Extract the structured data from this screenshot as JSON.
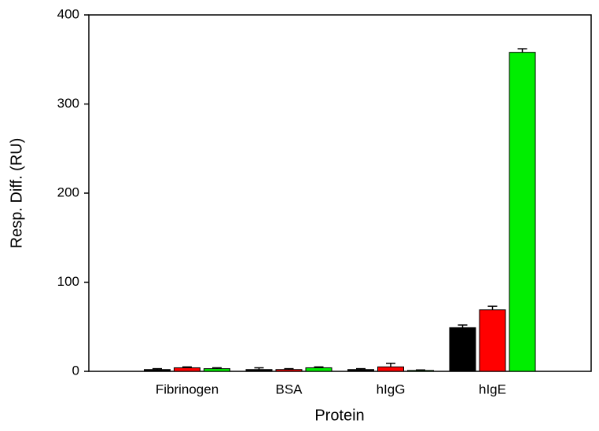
{
  "chart_data": {
    "type": "bar",
    "x_label": "Protein",
    "y_label": "Resp. Diff. (RU)",
    "categories": [
      "Fibrinogen",
      "BSA",
      "hIgG",
      "hIgE"
    ],
    "series": [
      {
        "color": "#000000",
        "values": [
          2,
          2,
          2,
          49
        ],
        "errors": [
          1,
          2,
          1,
          3
        ]
      },
      {
        "color": "#ff0000",
        "values": [
          4,
          2,
          5,
          69
        ],
        "errors": [
          1,
          1,
          4,
          4
        ]
      },
      {
        "color": "#00ee00",
        "values": [
          3,
          4,
          1,
          358
        ],
        "errors": [
          1,
          1,
          0.5,
          4
        ]
      }
    ],
    "ylim": [
      0,
      400
    ],
    "yticks": [
      0,
      100,
      200,
      300,
      400
    ]
  }
}
